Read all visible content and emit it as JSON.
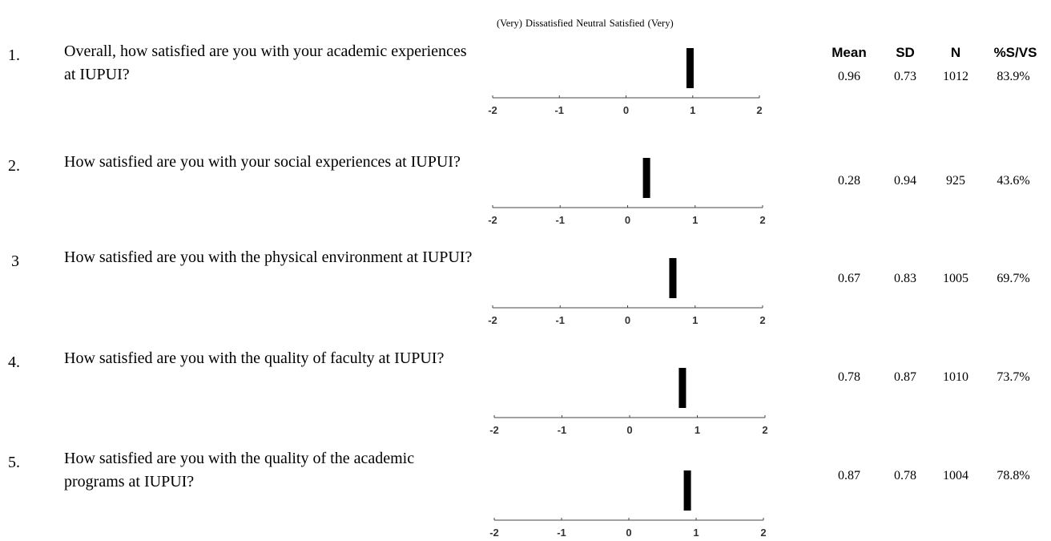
{
  "scale_header": "(Very) Dissatisfied Neutral Satisfied (Very)",
  "columns": {
    "mean": "Mean",
    "sd": "SD",
    "n": "N",
    "pct": "%S/VS"
  },
  "chart_data": {
    "type": "bar",
    "orientation": "horizontal-position",
    "xlim": [
      -2,
      2
    ],
    "tick_labels": [
      "-2",
      "-1",
      "0",
      "1",
      "2"
    ],
    "grid": false,
    "items": [
      {
        "number": "1.",
        "question": "Overall, how satisfied are you with your academic experiences at IUPUI?",
        "mean": "0.96",
        "sd": "0.73",
        "n": "1012",
        "pct": "83.9%",
        "value": 0.96
      },
      {
        "number": "2.",
        "question": "How satisfied are you with your social experiences at IUPUI?",
        "mean": "0.28",
        "sd": "0.94",
        "n": "925",
        "pct": "43.6%",
        "value": 0.28
      },
      {
        "number": "3",
        "question": "How satisfied are you with the physical environment at IUPUI?",
        "mean": "0.67",
        "sd": "0.83",
        "n": "1005",
        "pct": "69.7%",
        "value": 0.67
      },
      {
        "number": "4.",
        "question": "How satisfied are you with the quality of faculty at IUPUI?",
        "mean": "0.78",
        "sd": "0.87",
        "n": "1010",
        "pct": "73.7%",
        "value": 0.78
      },
      {
        "number": "5.",
        "question": "How satisfied are you with the quality of the academic programs at IUPUI?",
        "mean": "0.87",
        "sd": "0.78",
        "n": "1004",
        "pct": "78.8%",
        "value": 0.87
      }
    ]
  }
}
